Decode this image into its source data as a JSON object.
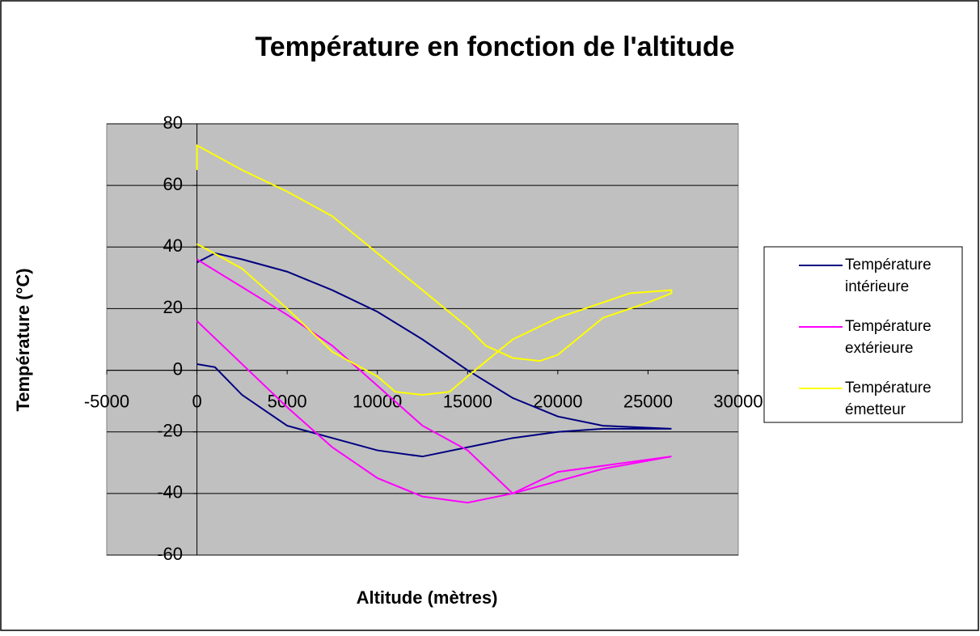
{
  "chart_data": {
    "type": "line",
    "title": "Température en fonction de l'altitude",
    "xlabel": "Altitude (mètres)",
    "ylabel": "Température (°C)",
    "xlim": [
      -5000,
      30000
    ],
    "xticks": [
      -5000,
      0,
      5000,
      10000,
      15000,
      20000,
      25000,
      30000
    ],
    "ylim": [
      -60,
      80
    ],
    "yticks": [
      -60,
      -40,
      -20,
      0,
      20,
      40,
      60,
      80
    ],
    "grid": true,
    "legend": "right",
    "series": [
      {
        "name": "Température intérieure",
        "color": "#000080",
        "x": [
          0,
          1000,
          2500,
          5000,
          7500,
          10000,
          12500,
          15000,
          17500,
          20000,
          22500,
          26300,
          26300,
          22500,
          20000,
          17500,
          15000,
          12500,
          10000,
          7500,
          5000,
          2500,
          1000,
          0
        ],
        "values": [
          35,
          38,
          36,
          32,
          26,
          19,
          10,
          0,
          -9,
          -15,
          -18,
          -19,
          -19,
          -19,
          -20,
          -22,
          -25,
          -28,
          -26,
          -22,
          -18,
          -8,
          1,
          2
        ]
      },
      {
        "name": "Température extérieure",
        "color": "#ff00ff",
        "x": [
          0,
          2500,
          5000,
          7500,
          10000,
          12500,
          15000,
          17500,
          20000,
          22500,
          26300,
          26300,
          22500,
          20000,
          17500,
          15000,
          12500,
          10000,
          7500,
          5000,
          2500,
          0
        ],
        "values": [
          36,
          27,
          18,
          8,
          -5,
          -18,
          -26,
          -40,
          -36,
          -32,
          -28,
          -28,
          -31,
          -33,
          -40,
          -43,
          -41,
          -35,
          -25,
          -12,
          2,
          16
        ]
      },
      {
        "name": "Température émetteur",
        "color": "#ffff00",
        "x": [
          0,
          0,
          2500,
          5000,
          7500,
          10000,
          12500,
          15000,
          16000,
          17500,
          19000,
          20000,
          22500,
          25000,
          26300,
          26300,
          24000,
          20000,
          17500,
          15000,
          14000,
          12500,
          11000,
          10000,
          7500,
          5000,
          2500,
          0
        ],
        "values": [
          65,
          73,
          65,
          58,
          50,
          38,
          26,
          14,
          8,
          4,
          3,
          5,
          17,
          22,
          25,
          26,
          25,
          17,
          10,
          -2,
          -7,
          -8,
          -7,
          -2,
          6,
          20,
          33,
          41
        ]
      }
    ]
  }
}
